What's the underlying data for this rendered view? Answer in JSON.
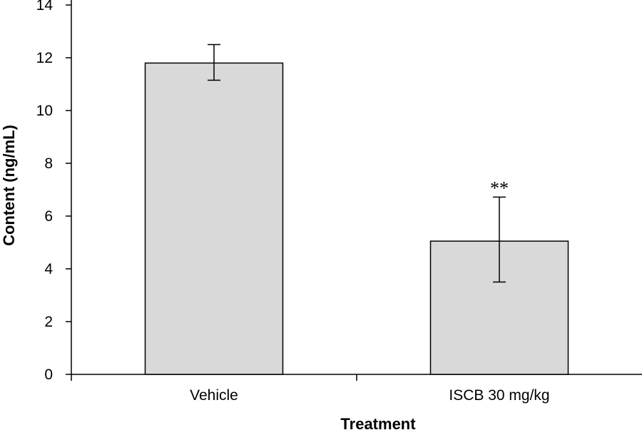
{
  "chart_data": {
    "type": "bar",
    "categories": [
      "Vehicle",
      "ISCB 30 mg/kg"
    ],
    "values": [
      11.8,
      5.05
    ],
    "error_bars": [
      {
        "low": 11.15,
        "high": 12.5
      },
      {
        "low": 3.5,
        "high": 6.72
      }
    ],
    "annotations": [
      "",
      "**"
    ],
    "xlabel": "Treatment",
    "ylabel": "Content (ng/mL)",
    "ylim": [
      0,
      14
    ],
    "yticks": [
      0,
      2,
      4,
      6,
      8,
      10,
      12,
      14
    ],
    "grid": false,
    "legend": "none",
    "colors": {
      "bar_fill": "#d9d9d9",
      "bar_stroke": "#000000",
      "axis": "#000000"
    }
  }
}
